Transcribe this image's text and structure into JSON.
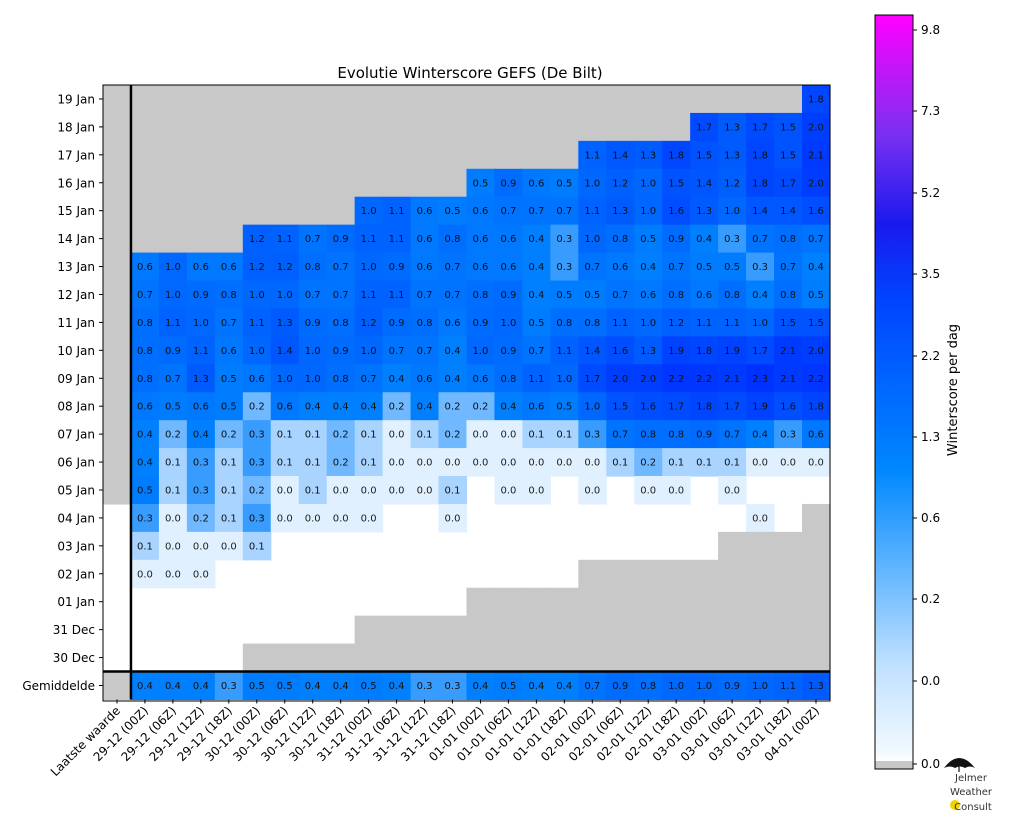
{
  "chart_data": {
    "type": "heatmap",
    "title": "Evolutie Winterscore GEFS (De Bilt)",
    "x_labels": [
      "Laatste waarde",
      "29-12 (00Z)",
      "29-12 (06Z)",
      "29-12 (12Z)",
      "29-12 (18Z)",
      "30-12 (00Z)",
      "30-12 (06Z)",
      "30-12 (12Z)",
      "30-12 (18Z)",
      "31-12 (00Z)",
      "31-12 (06Z)",
      "31-12 (12Z)",
      "31-12 (18Z)",
      "01-01 (00Z)",
      "01-01 (06Z)",
      "01-01 (12Z)",
      "01-01 (18Z)",
      "02-01 (00Z)",
      "02-01 (06Z)",
      "02-01 (12Z)",
      "02-01 (18Z)",
      "03-01 (00Z)",
      "03-01 (06Z)",
      "03-01 (12Z)",
      "03-01 (18Z)",
      "04-01 (00Z)"
    ],
    "y_labels": [
      "19 Jan",
      "18 Jan",
      "17 Jan",
      "16 Jan",
      "15 Jan",
      "14 Jan",
      "13 Jan",
      "12 Jan",
      "11 Jan",
      "10 Jan",
      "09 Jan",
      "08 Jan",
      "07 Jan",
      "06 Jan",
      "05 Jan",
      "04 Jan",
      "03 Jan",
      "02 Jan",
      "01 Jan",
      "31 Dec",
      "30 Dec"
    ],
    "average_label": "Gemiddelde",
    "rows": [
      [
        "",
        "",
        "",
        "",
        "",
        "",
        "",
        "",
        "",
        "",
        "",
        "",
        "",
        "",
        "",
        "",
        "",
        "",
        "",
        "",
        "",
        "",
        "",
        "",
        "",
        1.8
      ],
      [
        "",
        "",
        "",
        "",
        "",
        "",
        "",
        "",
        "",
        "",
        "",
        "",
        "",
        "",
        "",
        "",
        "",
        "",
        "",
        "",
        "",
        1.7,
        1.3,
        1.7,
        1.5,
        2.0
      ],
      [
        "",
        "",
        "",
        "",
        "",
        "",
        "",
        "",
        "",
        "",
        "",
        "",
        "",
        "",
        "",
        "",
        "",
        1.1,
        1.4,
        1.3,
        1.8,
        1.5,
        1.3,
        1.8,
        1.5,
        2.1
      ],
      [
        "",
        "",
        "",
        "",
        "",
        "",
        "",
        "",
        "",
        "",
        "",
        "",
        "",
        0.5,
        0.9,
        0.6,
        0.5,
        1.0,
        1.2,
        1.0,
        1.5,
        1.4,
        1.2,
        1.8,
        1.7,
        2.0
      ],
      [
        "",
        "",
        "",
        "",
        "",
        "",
        "",
        "",
        "",
        1.0,
        1.1,
        0.6,
        0.5,
        0.6,
        0.7,
        0.7,
        0.7,
        1.1,
        1.3,
        1.0,
        1.6,
        1.3,
        1.0,
        1.4,
        1.4,
        1.6
      ],
      [
        "",
        "",
        "",
        "",
        "",
        1.2,
        1.1,
        0.7,
        0.9,
        1.1,
        1.1,
        0.6,
        0.8,
        0.6,
        0.6,
        0.4,
        0.3,
        1.0,
        0.8,
        0.5,
        0.9,
        0.4,
        0.3,
        0.7,
        0.8,
        0.7
      ],
      [
        "",
        0.6,
        1.0,
        0.6,
        0.6,
        1.2,
        1.2,
        0.8,
        0.7,
        1.0,
        0.9,
        0.6,
        0.7,
        0.6,
        0.6,
        0.4,
        0.3,
        0.7,
        0.6,
        0.4,
        0.7,
        0.5,
        0.5,
        0.3,
        0.7,
        0.4
      ],
      [
        "",
        0.7,
        1.0,
        0.9,
        0.8,
        1.0,
        1.0,
        0.7,
        0.7,
        1.1,
        1.1,
        0.7,
        0.7,
        0.8,
        0.9,
        0.4,
        0.5,
        0.5,
        0.7,
        0.6,
        0.8,
        0.6,
        0.8,
        0.4,
        0.8,
        0.5
      ],
      [
        "",
        0.8,
        1.1,
        1.0,
        0.7,
        1.1,
        1.3,
        0.9,
        0.8,
        1.2,
        0.9,
        0.8,
        0.6,
        0.9,
        1.0,
        0.5,
        0.8,
        0.8,
        1.1,
        1.0,
        1.2,
        1.1,
        1.1,
        1.0,
        1.5,
        1.5
      ],
      [
        "",
        0.8,
        0.9,
        1.1,
        0.6,
        1.0,
        1.4,
        1.0,
        0.9,
        1.0,
        0.7,
        0.7,
        0.4,
        1.0,
        0.9,
        0.7,
        1.1,
        1.4,
        1.6,
        1.3,
        1.9,
        1.8,
        1.9,
        1.7,
        2.1,
        2.0
      ],
      [
        "",
        0.8,
        0.7,
        1.3,
        0.5,
        0.6,
        1.0,
        1.0,
        0.8,
        0.7,
        0.4,
        0.6,
        0.4,
        0.6,
        0.8,
        1.1,
        1.0,
        1.7,
        2.0,
        2.0,
        2.2,
        2.2,
        2.1,
        2.3,
        2.1,
        2.2
      ],
      [
        "",
        0.6,
        0.5,
        0.6,
        0.5,
        0.2,
        0.6,
        0.4,
        0.4,
        0.4,
        0.2,
        0.4,
        0.2,
        0.2,
        0.4,
        0.6,
        0.5,
        1.0,
        1.5,
        1.6,
        1.7,
        1.8,
        1.7,
        1.9,
        1.6,
        1.8
      ],
      [
        "",
        0.4,
        0.2,
        0.4,
        0.2,
        0.3,
        0.1,
        0.1,
        0.2,
        0.1,
        0.0,
        0.1,
        0.2,
        0.0,
        0.0,
        0.1,
        0.1,
        0.3,
        0.7,
        0.8,
        0.8,
        0.9,
        0.7,
        0.4,
        0.3,
        0.6
      ],
      [
        "",
        0.4,
        0.1,
        0.3,
        0.1,
        0.3,
        0.1,
        0.1,
        0.2,
        0.1,
        0.0,
        0.0,
        0.0,
        0.0,
        0.0,
        0.0,
        0.0,
        0.0,
        0.1,
        0.2,
        0.1,
        0.1,
        0.1,
        0.0,
        0.0,
        0.0
      ],
      [
        "",
        0.5,
        0.1,
        0.3,
        0.1,
        0.2,
        0.0,
        0.1,
        0.0,
        0.0,
        0.0,
        0.0,
        0.1,
        null,
        0.0,
        0.0,
        null,
        0.0,
        null,
        0.0,
        0.0,
        null,
        0.0,
        null,
        null,
        null
      ],
      [
        null,
        0.3,
        0.0,
        0.2,
        0.1,
        0.3,
        0.0,
        0.0,
        0.0,
        0.0,
        null,
        null,
        0.0,
        null,
        null,
        null,
        null,
        null,
        null,
        null,
        null,
        null,
        null,
        0.0,
        null,
        ""
      ],
      [
        null,
        0.1,
        0.0,
        0.0,
        0.0,
        0.1,
        null,
        null,
        null,
        null,
        null,
        null,
        null,
        null,
        null,
        null,
        null,
        null,
        null,
        null,
        null,
        null,
        "",
        "",
        "",
        ""
      ],
      [
        null,
        0.0,
        0.0,
        0.0,
        null,
        null,
        null,
        null,
        null,
        null,
        null,
        null,
        null,
        null,
        null,
        null,
        null,
        "",
        "",
        "",
        "",
        "",
        "",
        "",
        "",
        ""
      ],
      [
        null,
        null,
        null,
        null,
        null,
        null,
        null,
        null,
        null,
        null,
        null,
        null,
        null,
        "",
        "",
        "",
        "",
        "",
        "",
        "",
        "",
        "",
        "",
        "",
        "",
        ""
      ],
      [
        null,
        null,
        null,
        null,
        null,
        null,
        null,
        null,
        null,
        "",
        "",
        "",
        "",
        "",
        "",
        "",
        "",
        "",
        "",
        "",
        "",
        "",
        "",
        "",
        "",
        ""
      ],
      [
        null,
        null,
        null,
        null,
        null,
        "",
        "",
        "",
        "",
        "",
        "",
        "",
        "",
        "",
        "",
        "",
        "",
        "",
        "",
        "",
        "",
        "",
        "",
        "",
        "",
        ""
      ]
    ],
    "average": [
      "",
      0.4,
      0.4,
      0.4,
      0.3,
      0.5,
      0.5,
      0.4,
      0.4,
      0.5,
      0.4,
      0.3,
      0.3,
      0.4,
      0.5,
      0.4,
      0.4,
      0.7,
      0.9,
      0.8,
      1.0,
      1.0,
      0.9,
      1.0,
      1.1,
      1.3
    ],
    "colorbar": {
      "label": "Winterscore per dag",
      "ticks": [
        "0.0",
        "0.0",
        "0.2",
        "0.6",
        "1.3",
        "2.2",
        "3.5",
        "5.2",
        "7.3",
        "9.8"
      ],
      "colors": [
        "#ffffff",
        "#0080ff",
        "#0000ff",
        "#ff00ff"
      ],
      "missing_color": "#c8c8c8"
    }
  },
  "logo": {
    "line1": "Jelmer",
    "line2": "Weather",
    "line3": "Consult"
  }
}
